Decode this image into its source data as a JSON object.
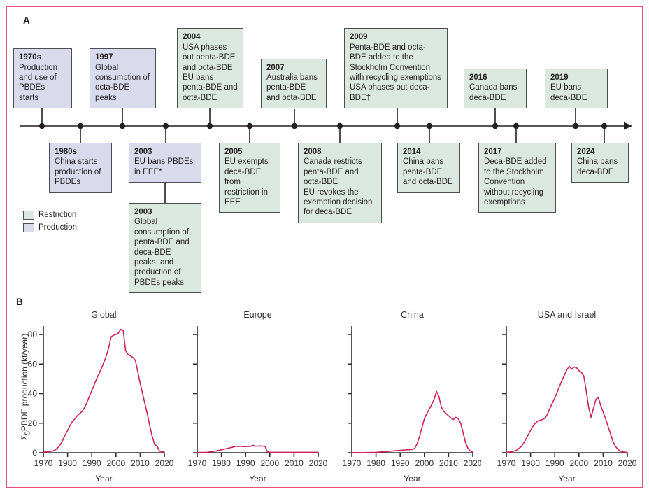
{
  "figure": {
    "panel_a_label": "A",
    "panel_b_label": "B",
    "frame_color": "#e4517a"
  },
  "legend": {
    "items": [
      {
        "label": "Restriction",
        "color": "#dbe8e0"
      },
      {
        "label": "Production",
        "color": "#d9dbed"
      }
    ]
  },
  "timeline": {
    "events": [
      {
        "year": "1970s",
        "text": "Production and use of PBDEs starts",
        "type": "production",
        "position": "above"
      },
      {
        "year": "1980s",
        "text": "China starts production of PBDEs",
        "type": "production",
        "position": "below"
      },
      {
        "year": "1997",
        "text": "Global consumption of octa-BDE peaks",
        "type": "production",
        "position": "above"
      },
      {
        "year": "2003",
        "text": "EU bans PBDEs in EEE*",
        "type": "production",
        "position": "below"
      },
      {
        "year": "2003",
        "text": "Global consumption of penta-BDE and deca-BDE peaks, and production of PBDEs peaks",
        "type": "restriction",
        "position": "below-stacked"
      },
      {
        "year": "2004",
        "text": "USA phases out penta-BDE and octa-BDE\nEU bans penta-BDE and octa-BDE",
        "type": "restriction",
        "position": "above"
      },
      {
        "year": "2005",
        "text": "EU exempts deca-BDE from restriction in EEE",
        "type": "restriction",
        "position": "below"
      },
      {
        "year": "2007",
        "text": "Australia bans penta-BDE and octa-BDE",
        "type": "restriction",
        "position": "above"
      },
      {
        "year": "2008",
        "text": "Canada restricts penta-BDE and octa-BDE\nEU revokes the exemption decision for deca-BDE",
        "type": "restriction",
        "position": "below"
      },
      {
        "year": "2009",
        "text": "Penta-BDE and octa-BDE added to the Stockholm Convention with recycling exemptions\nUSA phases out deca-BDE†",
        "type": "restriction",
        "position": "above"
      },
      {
        "year": "2014",
        "text": "China bans penta-BDE and octa-BDE",
        "type": "restriction",
        "position": "below"
      },
      {
        "year": "2016",
        "text": "Canada bans deca-BDE",
        "type": "restriction",
        "position": "above"
      },
      {
        "year": "2017",
        "text": "Deca-BDE added to the Stockholm Convention without recycling exemptions",
        "type": "restriction",
        "position": "below"
      },
      {
        "year": "2019",
        "text": "EU bans deca-BDE",
        "type": "restriction",
        "position": "above"
      },
      {
        "year": "2024",
        "text": "China bans deca-BDE",
        "type": "restriction",
        "position": "below"
      }
    ]
  },
  "panel_b": {
    "xlabel": "Year",
    "ylabel_parts": [
      "Σ",
      "5",
      "PBDE production (kt/year)"
    ]
  },
  "chart_data": [
    {
      "type": "line",
      "title": "Global",
      "xlabel": "Year",
      "ylabel": "Σ₅PBDE production (kt/year)",
      "xlim": [
        1970,
        2020
      ],
      "ylim": [
        0,
        80
      ],
      "xticks": [
        1970,
        1980,
        1990,
        2000,
        2010,
        2020
      ],
      "yticks": [
        0,
        20,
        40,
        60,
        80
      ],
      "show_ytick_labels": true,
      "line_color": "#ce2159",
      "x": [
        1970,
        1972,
        1974,
        1975,
        1976,
        1977,
        1978,
        1979,
        1980,
        1981,
        1982,
        1983,
        1984,
        1985,
        1986,
        1987,
        1988,
        1989,
        1990,
        1991,
        1992,
        1993,
        1994,
        1995,
        1996,
        1997,
        1998,
        1999,
        2000,
        2001,
        2002,
        2003,
        2004,
        2005,
        2006,
        2007,
        2008,
        2009,
        2010,
        2011,
        2012,
        2013,
        2014,
        2015,
        2016,
        2017,
        2018,
        2019,
        2020
      ],
      "y": [
        0.4,
        0.7,
        1.2,
        2,
        3.5,
        5.5,
        8.5,
        12,
        15,
        18.5,
        21,
        23,
        25,
        26.5,
        28,
        30.5,
        34,
        38,
        42,
        46,
        50,
        53.5,
        57,
        61,
        65.5,
        71,
        78.5,
        79.5,
        80,
        81,
        83.5,
        82.5,
        69,
        66.5,
        65.5,
        64.5,
        62.5,
        55,
        47,
        40,
        33,
        26,
        18,
        11,
        5.5,
        4.5,
        1.2,
        0.7,
        0.4
      ]
    },
    {
      "type": "line",
      "title": "Europe",
      "xlabel": "Year",
      "ylabel": "",
      "xlim": [
        1970,
        2020
      ],
      "ylim": [
        0,
        80
      ],
      "xticks": [
        1970,
        1980,
        1990,
        2000,
        2010,
        2020
      ],
      "yticks": [
        0,
        20,
        40,
        60,
        80
      ],
      "show_ytick_labels": false,
      "line_color": "#ce2159",
      "x": [
        1970,
        1972,
        1974,
        1976,
        1978,
        1980,
        1982,
        1984,
        1986,
        1987,
        1988,
        1989,
        1990,
        1991,
        1992,
        1993,
        1994,
        1995,
        1996,
        1997,
        1998,
        1999,
        2000,
        2005,
        2010,
        2015,
        2020
      ],
      "y": [
        0.2,
        0.2,
        0.3,
        0.7,
        1.3,
        2,
        2.8,
        3.5,
        4.4,
        4.2,
        4.4,
        4.1,
        4.3,
        4.2,
        4.3,
        5,
        4.4,
        4.5,
        4.6,
        4.5,
        4.4,
        0.6,
        0.3,
        0.3,
        0.3,
        0.3,
        0.3
      ]
    },
    {
      "type": "line",
      "title": "China",
      "xlabel": "Year",
      "ylabel": "",
      "xlim": [
        1970,
        2020
      ],
      "ylim": [
        0,
        80
      ],
      "xticks": [
        1970,
        1980,
        1990,
        2000,
        2010,
        2020
      ],
      "yticks": [
        0,
        20,
        40,
        60,
        80
      ],
      "show_ytick_labels": false,
      "line_color": "#ce2159",
      "x": [
        1970,
        1975,
        1980,
        1985,
        1990,
        1992,
        1994,
        1995,
        1996,
        1997,
        1998,
        1999,
        2000,
        2001,
        2002,
        2003,
        2004,
        2005,
        2006,
        2007,
        2008,
        2009,
        2010,
        2011,
        2012,
        2013,
        2014,
        2015,
        2016,
        2017,
        2018,
        2019,
        2020
      ],
      "y": [
        0.1,
        0.1,
        0.3,
        0.9,
        1.6,
        1.9,
        2.1,
        2.3,
        3,
        6,
        11,
        17,
        23,
        26.5,
        29.5,
        32.5,
        36,
        41.5,
        38,
        31,
        28,
        26.5,
        25,
        23.5,
        22.5,
        24,
        23,
        20,
        13.5,
        7,
        3,
        1.2,
        0.6
      ]
    },
    {
      "type": "line",
      "title": "USA and Israel",
      "xlabel": "Year",
      "ylabel": "",
      "xlim": [
        1970,
        2020
      ],
      "ylim": [
        0,
        80
      ],
      "xticks": [
        1970,
        1980,
        1990,
        2000,
        2010,
        2020
      ],
      "yticks": [
        0,
        20,
        40,
        60,
        80
      ],
      "show_ytick_labels": false,
      "line_color": "#ce2159",
      "x": [
        1970,
        1972,
        1974,
        1976,
        1977,
        1978,
        1979,
        1980,
        1981,
        1982,
        1983,
        1984,
        1985,
        1986,
        1987,
        1988,
        1989,
        1990,
        1991,
        1992,
        1993,
        1994,
        1995,
        1996,
        1997,
        1998,
        1999,
        2000,
        2001,
        2002,
        2003,
        2004,
        2005,
        2006,
        2007,
        2008,
        2009,
        2010,
        2011,
        2012,
        2013,
        2014,
        2015,
        2016,
        2017,
        2018,
        2019,
        2020
      ],
      "y": [
        0.3,
        0.6,
        1.5,
        4,
        6,
        9,
        12,
        15,
        18,
        20,
        21.5,
        22,
        22.5,
        23.5,
        26,
        30,
        33.5,
        37,
        41,
        45,
        49,
        52.5,
        56,
        58.5,
        56.5,
        58,
        57.5,
        55.5,
        54.5,
        52,
        42,
        31,
        24,
        30,
        36,
        37.5,
        32,
        27.5,
        23,
        18,
        13,
        8,
        4.5,
        2.5,
        1.2,
        0.6,
        0.4,
        0.3
      ]
    }
  ]
}
